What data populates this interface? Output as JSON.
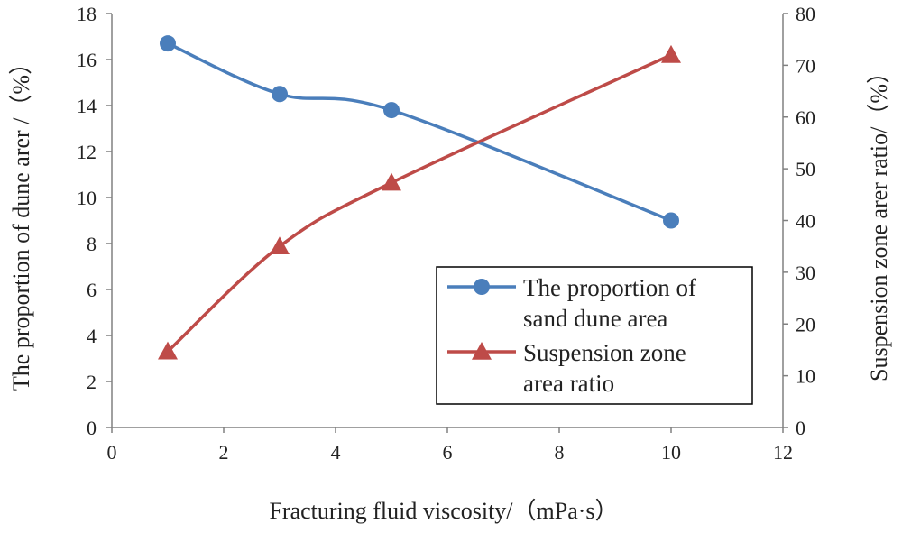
{
  "chart_data": {
    "type": "line",
    "xlabel": "Fracturing fluid viscosity/（mPa·s）",
    "ylabel_left": "The proportion of dune arer /（%）",
    "ylabel_right": "Suspension zone arer ratio/（%）",
    "xlim": [
      0,
      12
    ],
    "ylim_left": [
      0,
      18
    ],
    "ylim_right": [
      0,
      80
    ],
    "x_ticks": [
      0,
      2,
      4,
      6,
      8,
      10,
      12
    ],
    "y_left_ticks": [
      0,
      2,
      4,
      6,
      8,
      10,
      12,
      14,
      16,
      18
    ],
    "y_right_ticks": [
      0,
      10,
      20,
      30,
      40,
      50,
      60,
      70,
      80
    ],
    "grid": false,
    "legend_position": "bottom-right",
    "series": [
      {
        "name": "The proportion of sand dune area",
        "legend_lines": [
          "The proportion of",
          "sand dune area"
        ],
        "axis": "left",
        "marker": "circle",
        "color": "#4a7ebb",
        "x": [
          1,
          3,
          5,
          10
        ],
        "y": [
          16.7,
          14.5,
          13.8,
          9.0
        ]
      },
      {
        "name": "Suspension zone area ratio",
        "legend_lines": [
          "Suspension zone",
          "area ratio"
        ],
        "axis": "right",
        "marker": "triangle",
        "color": "#be4b48",
        "x": [
          1,
          3,
          5,
          10
        ],
        "y": [
          14.7,
          35.0,
          47.3,
          72.0
        ]
      }
    ]
  }
}
